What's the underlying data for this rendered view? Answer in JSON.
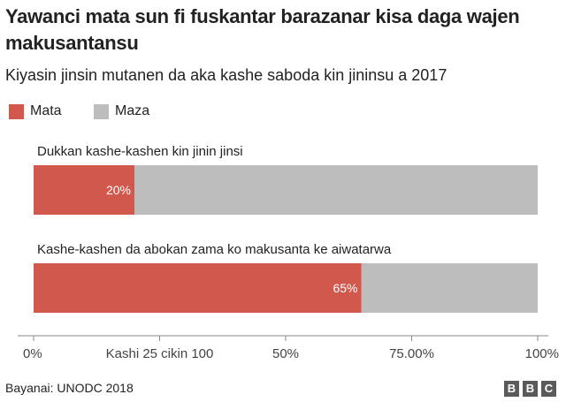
{
  "header": {
    "title": "Yawanci mata sun fi fuskantar barazanar kisa daga wajen makusantansu",
    "subtitle": "Kiyasin jinsin mutanen da aka kashe saboda kin jininsu a 2017"
  },
  "legend": [
    {
      "label": "Mata",
      "color": "#d1584d"
    },
    {
      "label": "Maza",
      "color": "#bdbdbd"
    }
  ],
  "chart_data": {
    "type": "bar",
    "orientation": "horizontal",
    "stacked": true,
    "categories": [
      "Dukkan kashe-kashen kin jinin jinsi",
      "Kashe-kashen da abokan zama ko makusanta ke aiwatarwa"
    ],
    "series": [
      {
        "name": "Mata",
        "values": [
          20,
          65
        ],
        "color": "#d1584d",
        "labels": [
          "20%",
          "65%"
        ]
      },
      {
        "name": "Maza",
        "values": [
          80,
          35
        ],
        "color": "#bdbdbd"
      }
    ],
    "xlim": [
      0,
      100
    ],
    "ticks": [
      0,
      25,
      50,
      75,
      100
    ],
    "tick_labels": [
      "0%",
      "Kashi 25 cikin 100",
      "50%",
      "75.00%",
      "100%"
    ],
    "grid": false
  },
  "footer": {
    "source": "Bayanai: UNODC 2018",
    "logo": [
      "B",
      "B",
      "C"
    ]
  }
}
